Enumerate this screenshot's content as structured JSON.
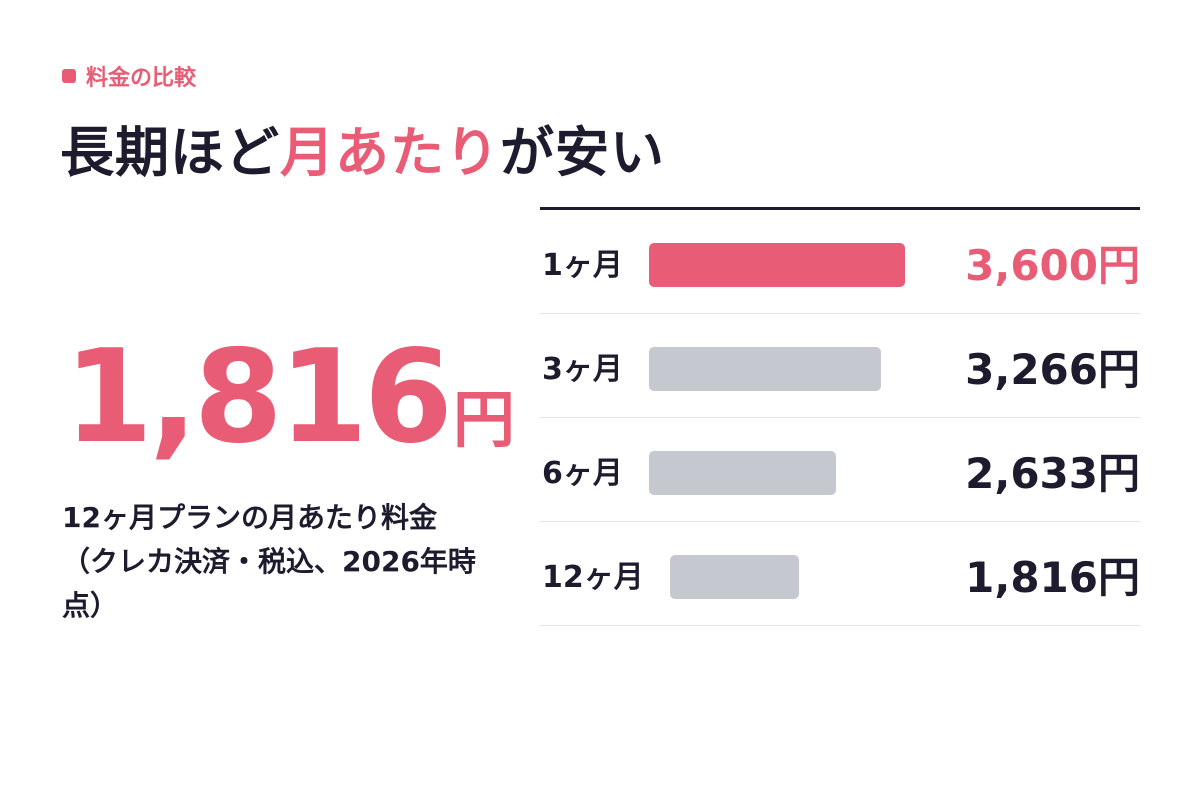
{
  "tag": "料金の比較",
  "headline": {
    "before": "長期ほど",
    "accent": "月あたり",
    "after": "が安い"
  },
  "highlight": {
    "value": "1,816",
    "unit": "円",
    "caption": "12ヶ月プランの月あたり料金（クレカ決済・税込、2026年時点）"
  },
  "colors": {
    "accent": "#e85d75",
    "bar": "#c5c8cf",
    "text": "#1c1c2e",
    "rule": "#e3e3e8"
  },
  "chart_data": {
    "type": "bar",
    "orientation": "horizontal",
    "categories": [
      "1ヶ月",
      "3ヶ月",
      "6ヶ月",
      "12ヶ月"
    ],
    "values": [
      3600,
      3266,
      2633,
      1816
    ],
    "value_labels": [
      "3,600円",
      "3,266円",
      "2,633円",
      "1,816円"
    ],
    "highlighted_category": "1ヶ月",
    "title": "",
    "xlabel": "",
    "ylabel": "",
    "grid": false
  }
}
